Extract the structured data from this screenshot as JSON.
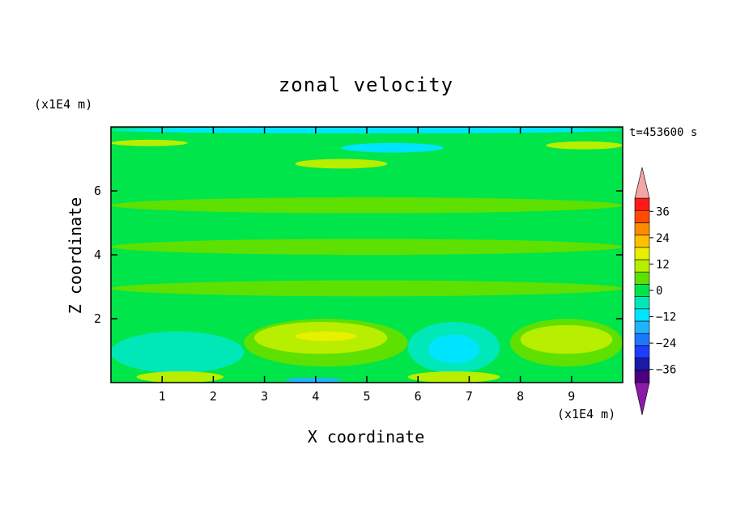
{
  "chart_data": {
    "type": "heatmap",
    "title": "zonal velocity",
    "xlabel": "X coordinate",
    "ylabel": "Z coordinate",
    "x_unit": "(x1E4 m)",
    "y_unit": "(x1E4 m)",
    "time_label": "t=453600 s",
    "xlim": [
      0,
      10
    ],
    "ylim": [
      0,
      8
    ],
    "x_ticks": [
      "1",
      "2",
      "3",
      "4",
      "5",
      "6",
      "7",
      "8",
      "9"
    ],
    "y_ticks": [
      "2",
      "4",
      "6"
    ],
    "colorbar": {
      "labels": [
        "36",
        "24",
        "12",
        "0",
        "−12",
        "−24",
        "−36"
      ],
      "levels": [
        -42,
        -36,
        -30,
        -24,
        -18,
        -12,
        -6,
        0,
        6,
        12,
        18,
        24,
        30,
        36,
        42
      ],
      "colors": [
        "#4b0082",
        "#1a1aa8",
        "#1e3cff",
        "#1e78ff",
        "#1eb4ff",
        "#00e5ff",
        "#00e8b8",
        "#00e54a",
        "#5ee000",
        "#b8ee00",
        "#e8f000",
        "#ffc000",
        "#ff8c00",
        "#ff4a00",
        "#ff1a1a"
      ],
      "over_color": "#f2a6a6",
      "under_color": "#8a1aa8"
    },
    "regions": [
      {
        "level": -6,
        "x": [
          0,
          2.6
        ],
        "z": [
          0.3,
          1.6
        ]
      },
      {
        "level": -6,
        "x": [
          5.8,
          7.6
        ],
        "z": [
          0.3,
          1.9
        ]
      },
      {
        "level": -12,
        "x": [
          6.2,
          7.2
        ],
        "z": [
          0.6,
          1.5
        ]
      },
      {
        "level": 6,
        "x": [
          2.6,
          5.8
        ],
        "z": [
          0.5,
          2.0
        ]
      },
      {
        "level": 12,
        "x": [
          2.8,
          5.4
        ],
        "z": [
          0.9,
          1.9
        ]
      },
      {
        "level": 18,
        "x": [
          3.6,
          4.8
        ],
        "z": [
          1.3,
          1.6
        ]
      },
      {
        "level": 6,
        "x": [
          7.8,
          10
        ],
        "z": [
          0.5,
          2.0
        ]
      },
      {
        "level": 12,
        "x": [
          8.0,
          9.8
        ],
        "z": [
          0.9,
          1.8
        ]
      },
      {
        "level": 12,
        "x": [
          0.5,
          2.2
        ],
        "z": [
          0.0,
          0.35
        ]
      },
      {
        "level": 12,
        "x": [
          5.8,
          7.6
        ],
        "z": [
          0.0,
          0.35
        ]
      },
      {
        "level": -18,
        "x": [
          3.4,
          4.5
        ],
        "z": [
          0.0,
          0.15
        ]
      },
      {
        "level": 6,
        "x": [
          0,
          10
        ],
        "z": [
          2.7,
          3.2
        ]
      },
      {
        "level": 6,
        "x": [
          0,
          10
        ],
        "z": [
          4.0,
          4.5
        ]
      },
      {
        "level": 6,
        "x": [
          0,
          10
        ],
        "z": [
          5.3,
          5.8
        ]
      },
      {
        "level": 12,
        "x": [
          3.6,
          5.4
        ],
        "z": [
          6.7,
          7.0
        ]
      },
      {
        "level": 12,
        "x": [
          0,
          1.5
        ],
        "z": [
          7.4,
          7.6
        ]
      },
      {
        "level": 12,
        "x": [
          8.5,
          10
        ],
        "z": [
          7.3,
          7.55
        ]
      },
      {
        "level": -12,
        "x": [
          4.5,
          6.5
        ],
        "z": [
          7.2,
          7.5
        ]
      },
      {
        "level": -12,
        "x": [
          0,
          10
        ],
        "z": [
          7.8,
          8.0
        ]
      }
    ]
  }
}
